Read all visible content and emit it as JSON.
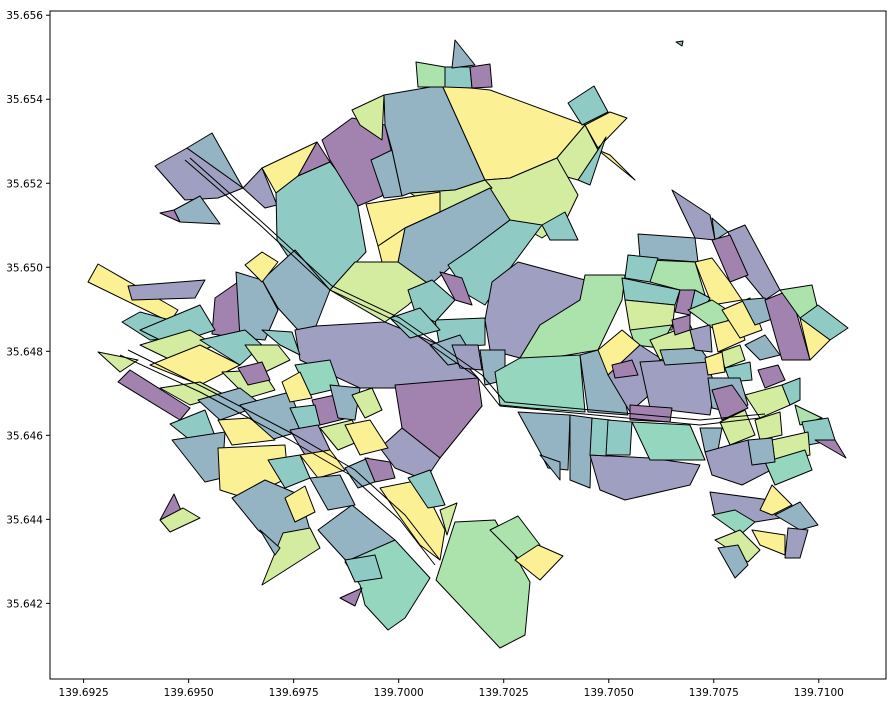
{
  "palette": {
    "purple": "#a283af",
    "slate": "#94b3c3",
    "teal": "#8fcbc4",
    "mint": "#94d6be",
    "green": "#ace2ab",
    "lime": "#d3ec9f",
    "yellow": "#fbf093",
    "lavender": "#9f9fc2"
  },
  "chart_data": {
    "type": "map",
    "title": "",
    "xlabel": "",
    "ylabel": "",
    "xlim": [
      139.6917,
      139.7116
    ],
    "ylim": [
      35.6402,
      35.6561
    ],
    "x_ticks": [
      "139.6925",
      "139.6950",
      "139.6975",
      "139.7000",
      "139.7025",
      "139.7050",
      "139.7075",
      "139.7100"
    ],
    "x_tick_values": [
      139.6925,
      139.695,
      139.6975,
      139.7,
      139.7025,
      139.705,
      139.7075,
      139.71
    ],
    "y_ticks": [
      "35.642",
      "35.644",
      "35.646",
      "35.648",
      "35.650",
      "35.652",
      "35.654",
      "35.656"
    ],
    "y_tick_values": [
      35.642,
      35.644,
      35.646,
      35.648,
      35.65,
      35.652,
      35.654,
      35.656
    ],
    "grid": false,
    "legend": "none",
    "polygon_count": 62
  }
}
